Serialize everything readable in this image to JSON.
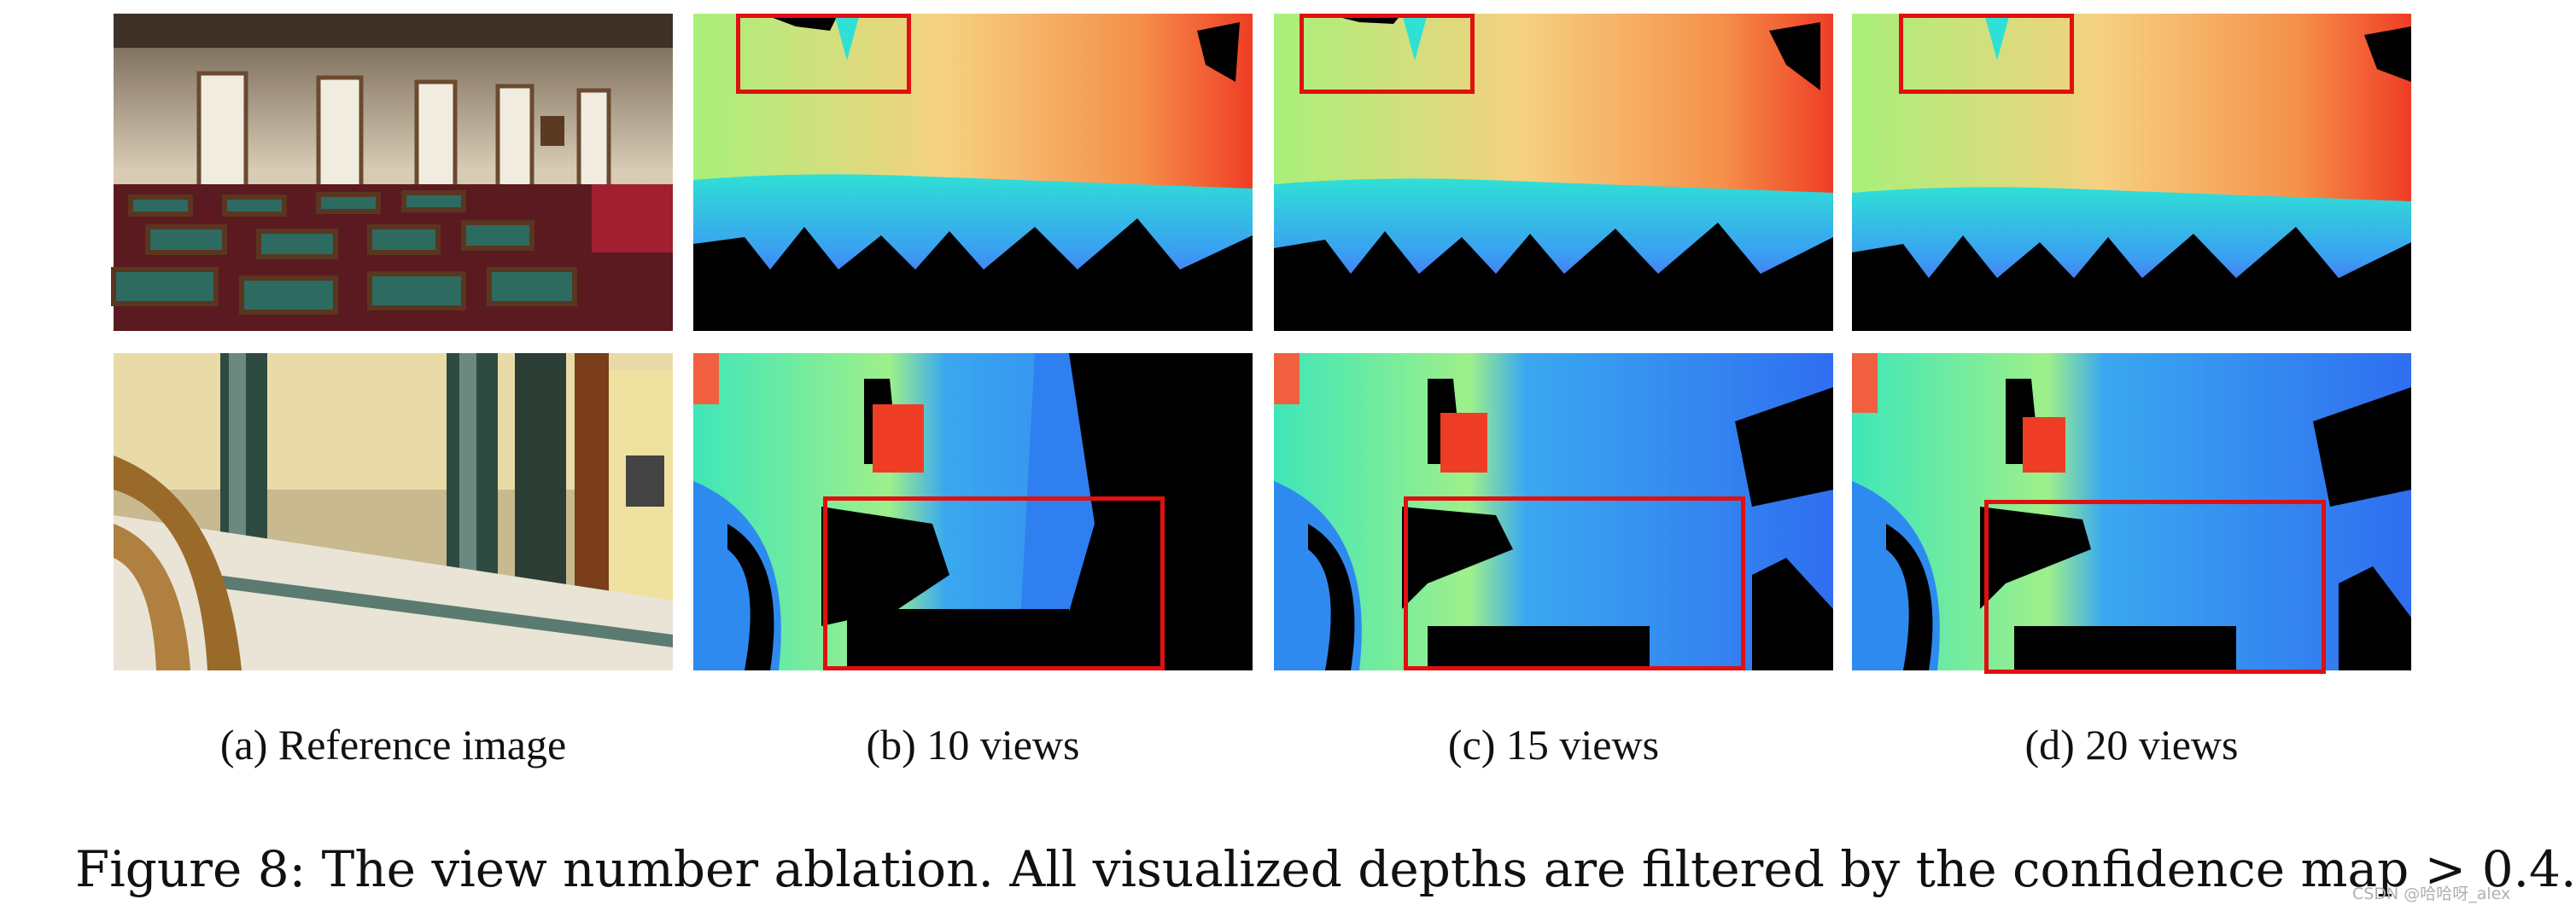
{
  "sub_captions": {
    "a": "(a) Reference image",
    "b": "(b) 10 views",
    "c": "(c) 15 views",
    "d": "(d) 20 views"
  },
  "figure_caption": "Figure 8: The view number ablation. All visualized depths are filtered by the confidence map > 0.4.",
  "watermark": "CSDN @哈哈呀_alex",
  "colors": {
    "highlight_box": "#e01010",
    "invalid_depth": "#000000",
    "colormap": [
      "#6a2cf0",
      "#3a7df5",
      "#2fe0d5",
      "#a8f07a",
      "#f6d080",
      "#f45030"
    ]
  }
}
